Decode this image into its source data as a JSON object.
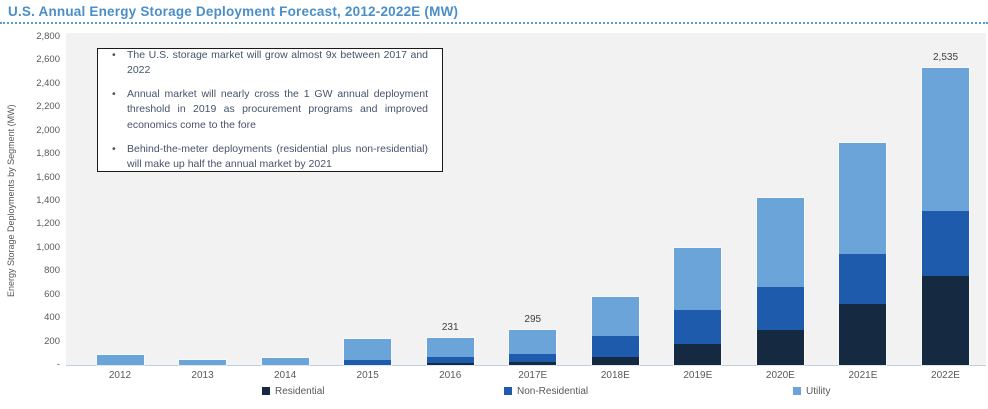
{
  "header": {
    "title": "U.S. Annual Energy Storage Deployment Forecast, 2012-2022E (MW)"
  },
  "annotation": {
    "bullets": [
      "The U.S. storage market will grow almost 9x between 2017 and 2022",
      "Annual market will nearly cross the 1 GW annual deployment threshold in 2019 as procurement programs and improved economics come to the fore",
      "Behind-the-meter deployments (residential plus non-residential) will make up half the annual market by 2021"
    ]
  },
  "chart_data": {
    "type": "bar",
    "stacked": true,
    "title": "U.S. Annual Energy Storage Deployment Forecast, 2012-2022E (MW)",
    "ylabel": "Energy Storage Deployments by Segment (MW)",
    "ylim": [
      0,
      2800
    ],
    "ytick_step": 200,
    "ytick_labels": [
      "-",
      "200",
      "400",
      "600",
      "800",
      "1,000",
      "1,200",
      "1,400",
      "1,600",
      "1,800",
      "2,000",
      "2,200",
      "2,400",
      "2,600",
      "2,800"
    ],
    "grid": false,
    "legend_position": "bottom",
    "plot_background": "#f2f2f2",
    "categories": [
      "2012",
      "2013",
      "2014",
      "2015",
      "2016",
      "2017E",
      "2018E",
      "2019E",
      "2020E",
      "2021E",
      "2022E"
    ],
    "series": [
      {
        "name": "Residential",
        "color": "#152940",
        "values": [
          0,
          0,
          0,
          0,
          20,
          30,
          70,
          180,
          300,
          520,
          760
        ]
      },
      {
        "name": "Non-Residential",
        "color": "#1e5bac",
        "values": [
          0,
          0,
          0,
          45,
          50,
          65,
          180,
          290,
          370,
          430,
          555
        ]
      },
      {
        "name": "Utility",
        "color": "#6aa4d8",
        "values": [
          85,
          45,
          60,
          175,
          161,
          200,
          330,
          525,
          760,
          945,
          1220
        ]
      }
    ],
    "bar_value_labels": [
      "",
      "",
      "",
      "",
      "231",
      "295",
      "",
      "",
      "",
      "",
      "2,535"
    ]
  }
}
